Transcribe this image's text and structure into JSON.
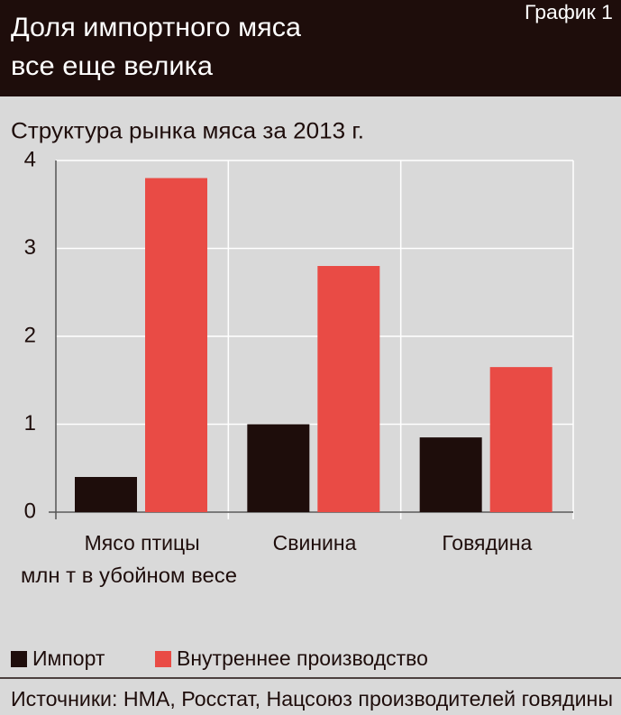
{
  "chart_data": {
    "type": "bar",
    "title": [
      "Доля импортного мяса",
      "все еще велика"
    ],
    "figure_label": "График 1",
    "subtitle": "Структура рынка мяса за 2013 г.",
    "ylabel": "млн т в убойном весе",
    "categories": [
      "Мясо птицы",
      "Свинина",
      "Говядина"
    ],
    "series": [
      {
        "name": "Импорт",
        "color": "#1e0d0b",
        "values": [
          0.4,
          1.0,
          0.85
        ]
      },
      {
        "name": "Внутреннее производство",
        "color": "#e94b45",
        "values": [
          3.8,
          2.8,
          1.65
        ]
      }
    ],
    "ylim": [
      0,
      4
    ],
    "yticks": [
      0,
      1,
      2,
      3,
      4
    ],
    "grid": true,
    "legend": "bottom-left",
    "source": "Источники: НМА, Росстат, Нацсоюз производителей говядины"
  }
}
